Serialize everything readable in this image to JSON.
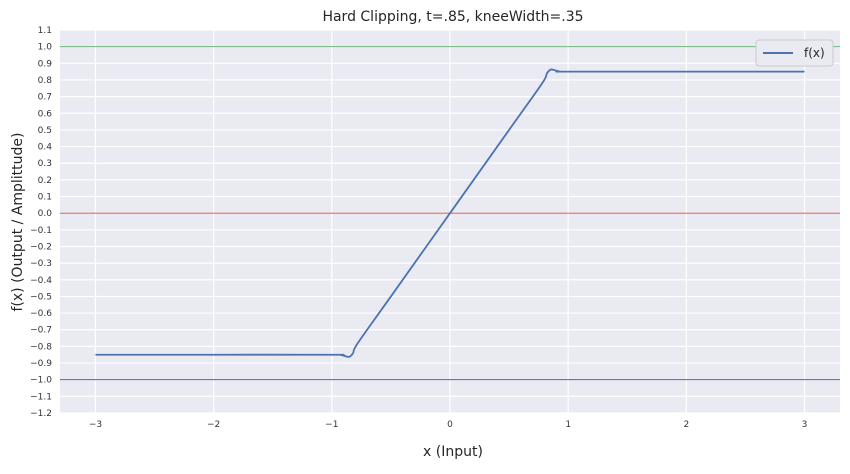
{
  "chart_data": {
    "type": "line",
    "title": "Hard Clipping, t=.85, kneeWidth=.35",
    "xlabel": "x (Input)",
    "ylabel": "f(x) (Output / Amplittude)",
    "xlim": [
      -3.3,
      3.3
    ],
    "ylim": [
      -1.2,
      1.1
    ],
    "xticks": [
      -3,
      -2,
      -1,
      0,
      1,
      2,
      3
    ],
    "xtick_labels": [
      "−3",
      "−2",
      "−1",
      "0",
      "1",
      "2",
      "3"
    ],
    "yticks": [
      -1.2,
      -1.1,
      -1.0,
      -0.9,
      -0.8,
      -0.7,
      -0.6,
      -0.5,
      -0.4,
      -0.3,
      -0.2,
      -0.1,
      0.0,
      0.1,
      0.2,
      0.3,
      0.4,
      0.5,
      0.6,
      0.7,
      0.8,
      0.9,
      1.0,
      1.1
    ],
    "ytick_labels": [
      "−1.2",
      "−1.1",
      "−1.0",
      "−0.9",
      "−0.8",
      "−0.7",
      "−0.6",
      "−0.5",
      "−0.4",
      "−0.3",
      "−0.2",
      "−0.1",
      "0.0",
      "0.1",
      "0.2",
      "0.3",
      "0.4",
      "0.5",
      "0.6",
      "0.7",
      "0.8",
      "0.9",
      "1.0",
      "1.1"
    ],
    "grid": true,
    "legend_position": "top-right",
    "series": [
      {
        "name": "f(x)",
        "color": "#4c72b0",
        "x": [
          -3.0,
          -2.0,
          -1.0,
          -0.92,
          -0.88,
          -0.85,
          -0.82,
          -0.78,
          -0.5,
          0.0,
          0.5,
          0.78,
          0.82,
          0.85,
          0.88,
          0.92,
          1.0,
          2.0,
          3.0
        ],
        "y": [
          -0.85,
          -0.85,
          -0.85,
          -0.852,
          -0.86,
          -0.862,
          -0.84,
          -0.78,
          -0.5,
          0.0,
          0.5,
          0.78,
          0.84,
          0.862,
          0.86,
          0.852,
          0.85,
          0.85,
          0.85
        ]
      }
    ],
    "reference_lines": [
      {
        "y": 1.0,
        "color": "#55a868"
      },
      {
        "y": 0.0,
        "color": "#e04040"
      },
      {
        "y": -1.0,
        "color": "#3f3fd0"
      }
    ],
    "background_color": "#eaeaf2",
    "grid_color": "#ffffff"
  }
}
